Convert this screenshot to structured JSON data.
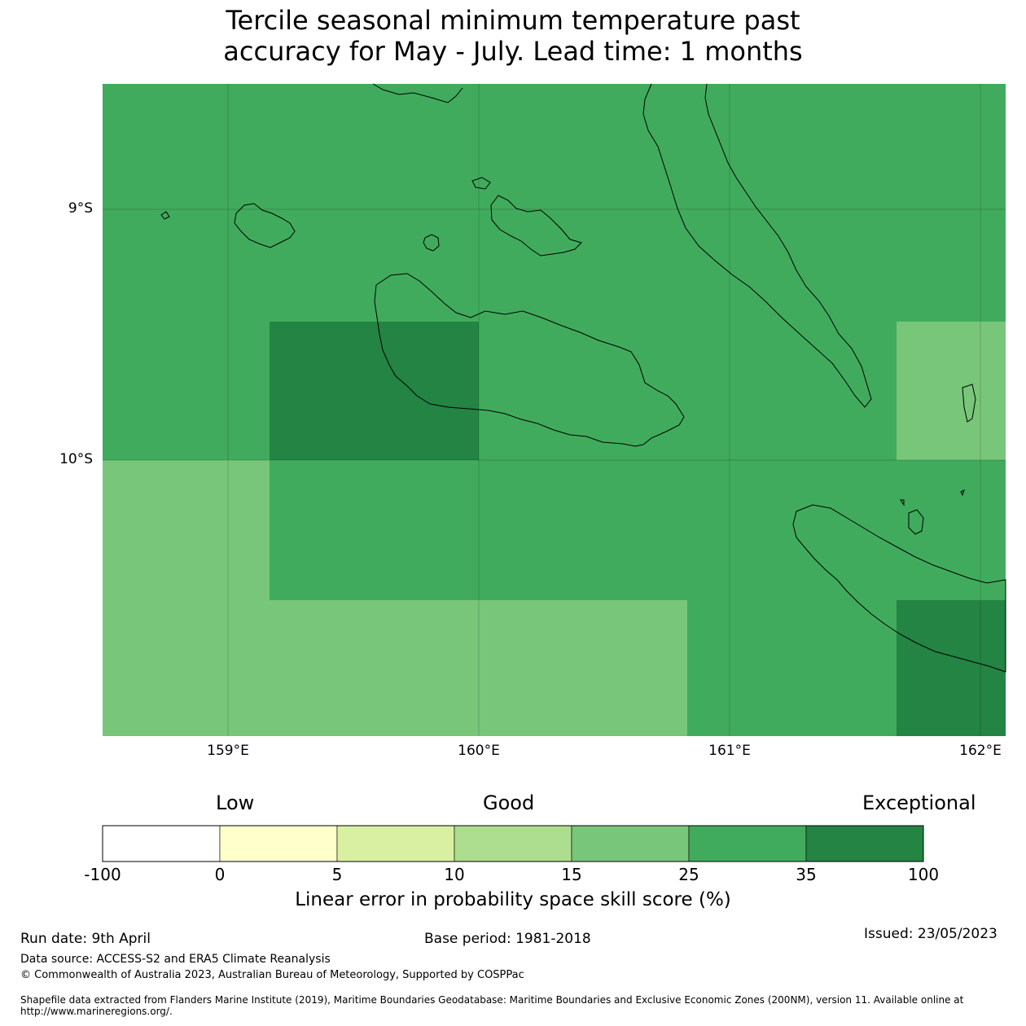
{
  "title": {
    "line1": "Tercile seasonal minimum temperature past",
    "line2": "accuracy for May - July. Lead time: 1 months"
  },
  "map": {
    "lat_labels": [
      "9°S",
      "10°S"
    ],
    "lon_labels": [
      "159°E",
      "160°E",
      "161°E",
      "162°E"
    ],
    "skill_cells": [
      {
        "lon": [
          158.5,
          162.1
        ],
        "lat": [
          -8.5,
          -11.1
        ],
        "category": "25 to 35"
      },
      {
        "lon": [
          159.17,
          160.0
        ],
        "lat": [
          -9.45,
          -10.0
        ],
        "category": "35 to 100"
      },
      {
        "lon": [
          161.67,
          162.1
        ],
        "lat": [
          -9.45,
          -10.0
        ],
        "category": "15 to 25"
      },
      {
        "lon": [
          158.5,
          159.17
        ],
        "lat": [
          -10.0,
          -11.1
        ],
        "category": "15 to 25"
      },
      {
        "lon": [
          159.17,
          160.83
        ],
        "lat": [
          -10.55,
          -11.1
        ],
        "category": "15 to 25"
      },
      {
        "lon": [
          161.67,
          162.1
        ],
        "lat": [
          -10.55,
          -11.1
        ],
        "category": "35 to 100"
      }
    ]
  },
  "colorbar": {
    "words": {
      "low": "Low",
      "good": "Good",
      "exceptional": "Exceptional"
    },
    "ticks": [
      "-100",
      "0",
      "5",
      "10",
      "15",
      "25",
      "35",
      "100"
    ],
    "colors": [
      "#ffffff",
      "#ffffcc",
      "#d9f0a3",
      "#addd8e",
      "#78c679",
      "#41ab5d",
      "#238443"
    ],
    "label": "Linear error in probability space skill score (%)"
  },
  "footer": {
    "run_date": "Run date: 9th April",
    "base_period": "Base period: 1981-2018",
    "issued": "Issued: 23/05/2023",
    "data_source": "Data source: ACCESS-S2 and ERA5 Climate Reanalysis",
    "copyright": "© Commonwealth of Australia 2023, Australian Bureau of Meteorology, Supported by COSPPac",
    "shapefile_line1": "Shapefile data extracted from Flanders Marine Institute (2019), Maritime Boundaries Geodatabase: Maritime Boundaries and Exclusive Economic Zones (200NM), version 11. Available online at",
    "shapefile_line2": "http://www.marineregions.org/."
  }
}
